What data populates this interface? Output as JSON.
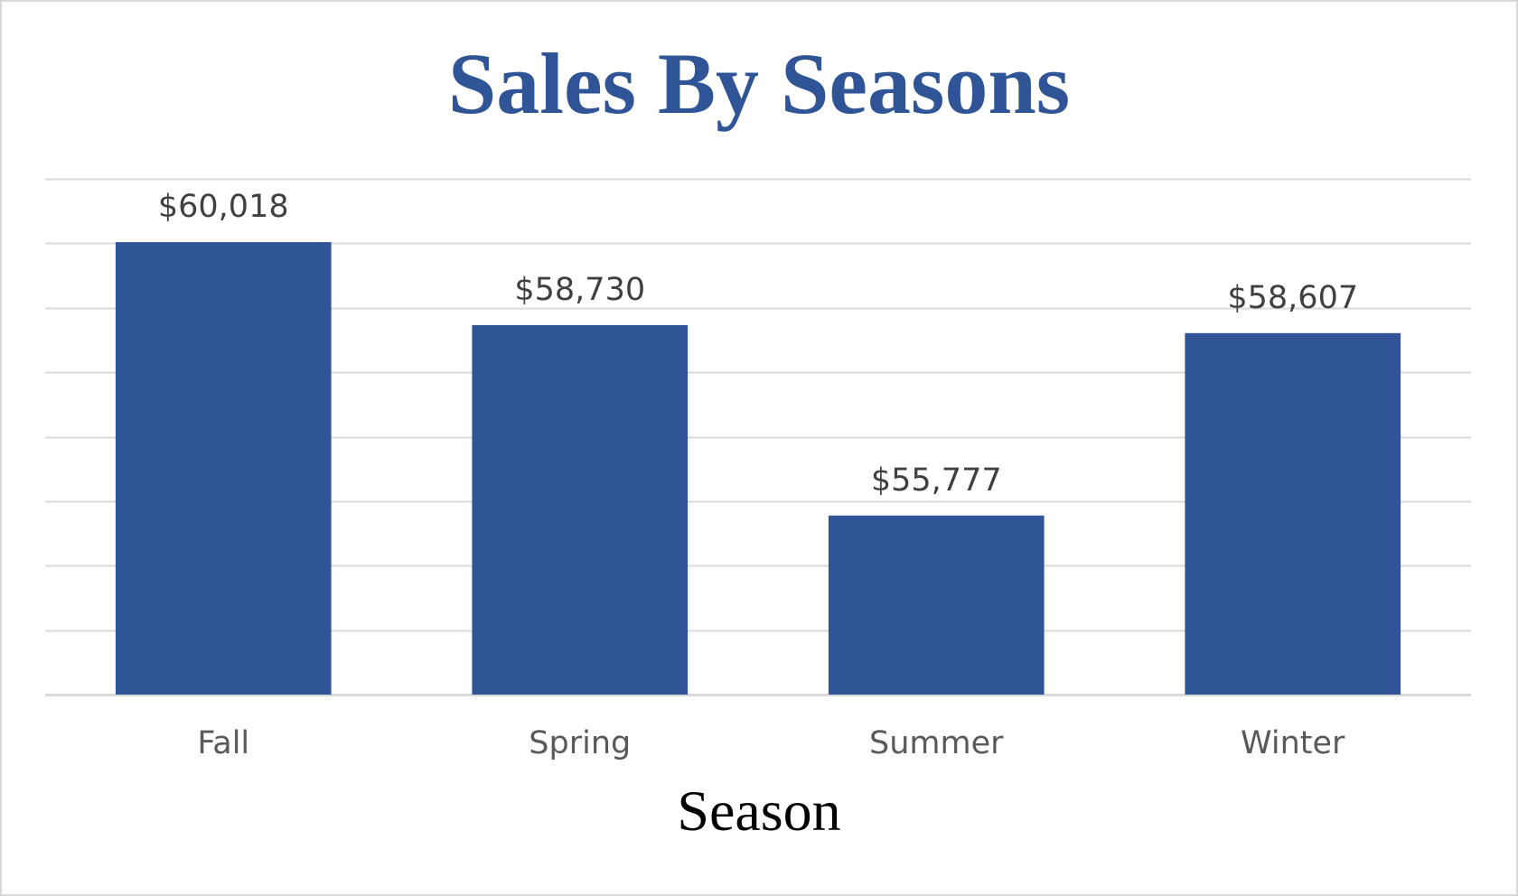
{
  "chart_data": {
    "type": "bar",
    "title": "Sales By Seasons",
    "xlabel": "Season",
    "ylabel": "",
    "categories": [
      "Fall",
      "Spring",
      "Summer",
      "Winter"
    ],
    "values": [
      60018,
      58730,
      55777,
      58607
    ],
    "data_labels": [
      "$60,018",
      "$58,730",
      "$55,777",
      "$58,607"
    ],
    "ylim": [
      53000,
      61000
    ],
    "grid": true,
    "y_axis_visible": false,
    "bar_color": "#2f5597",
    "grid_color": "#d9d9d9"
  }
}
